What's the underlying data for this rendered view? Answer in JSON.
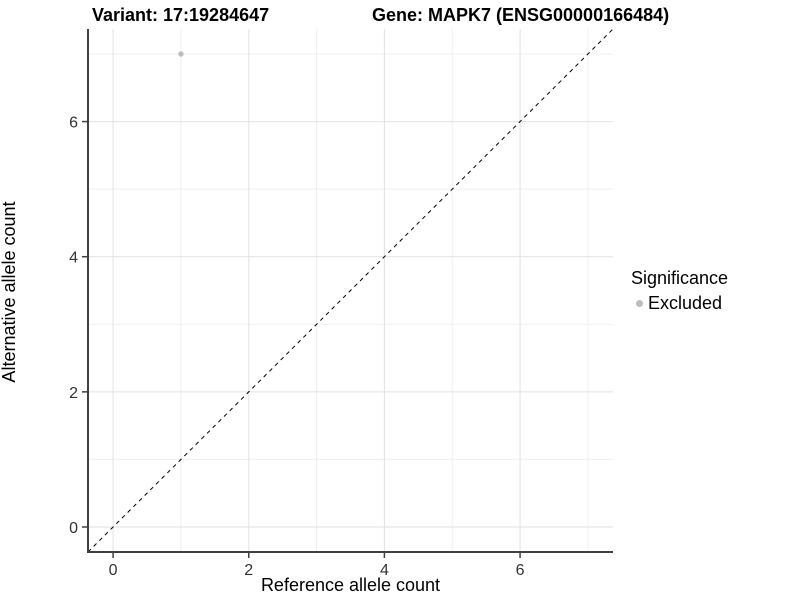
{
  "titles": {
    "variant": "Variant: 17:19284647",
    "gene": "Gene: MAPK7 (ENSG00000166484)"
  },
  "chart_data": {
    "type": "scatter",
    "title_left": "Variant: 17:19284647",
    "title_right": "Gene: MAPK7 (ENSG00000166484)",
    "xlabel": "Reference allele count",
    "ylabel": "Alternative allele count",
    "xlim": [
      -0.37,
      7.37
    ],
    "ylim": [
      -0.37,
      7.37
    ],
    "xticks": [
      0,
      2,
      4,
      6
    ],
    "yticks": [
      0,
      2,
      4,
      6
    ],
    "xgrid_minor": [
      1,
      3,
      5,
      7
    ],
    "ygrid_minor": [
      1,
      3,
      5,
      7
    ],
    "grid": true,
    "series": [
      {
        "name": "Excluded",
        "color": "#bdbdbd",
        "points": [
          {
            "x": 1,
            "y": 7
          }
        ]
      }
    ],
    "reference_line": {
      "style": "dashed",
      "from": [
        -0.37,
        -0.37
      ],
      "to": [
        7.37,
        7.37
      ],
      "color": "#000000"
    },
    "legend": {
      "title": "Significance",
      "position": "right",
      "items": [
        {
          "label": "Excluded",
          "color": "#bdbdbd"
        }
      ]
    },
    "colors": {
      "grid_major": "#e2e2e2",
      "grid_minor": "#efefef",
      "axis_line": "#404040",
      "tick_label": "#333333",
      "text": "#000000",
      "background": "#ffffff"
    }
  }
}
